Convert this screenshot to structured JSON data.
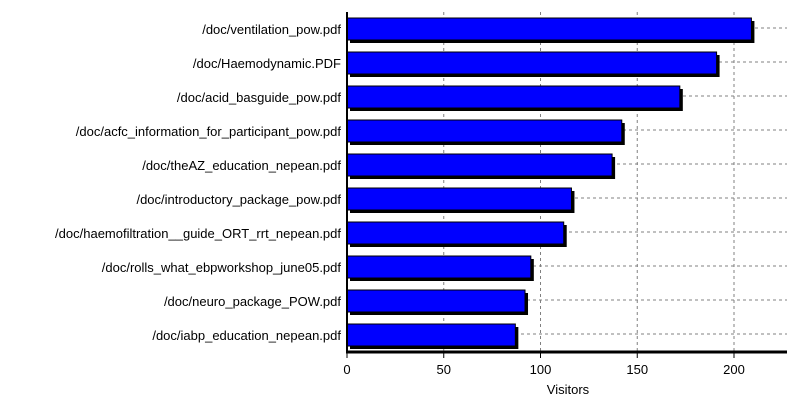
{
  "chart_data": {
    "type": "bar",
    "orientation": "horizontal",
    "categories": [
      "/doc/ventilation_pow.pdf",
      "/doc/Haemodynamic.PDF",
      "/doc/acid_basguide_pow.pdf",
      "/doc/acfc_information_for_participant_pow.pdf",
      "/doc/theAZ_education_nepean.pdf",
      "/doc/introductory_package_pow.pdf",
      "/doc/haemofiltration__guide_ORT_rrt_nepean.pdf",
      "/doc/rolls_what_ebpworkshop_june05.pdf",
      "/doc/neuro_package_POW.pdf",
      "/doc/iabp_education_nepean.pdf"
    ],
    "values": [
      209,
      191,
      172,
      142,
      137,
      116,
      112,
      95,
      92,
      87
    ],
    "xlabel": "Visitors",
    "xlim": [
      0,
      230
    ],
    "xticks": [
      0,
      50,
      100,
      150,
      200
    ],
    "xtick_labels": [
      "0",
      "50",
      "100",
      "150",
      "200"
    ],
    "grid": true,
    "bar_color": "#0000ff",
    "bar_edge_color": "#000000"
  }
}
